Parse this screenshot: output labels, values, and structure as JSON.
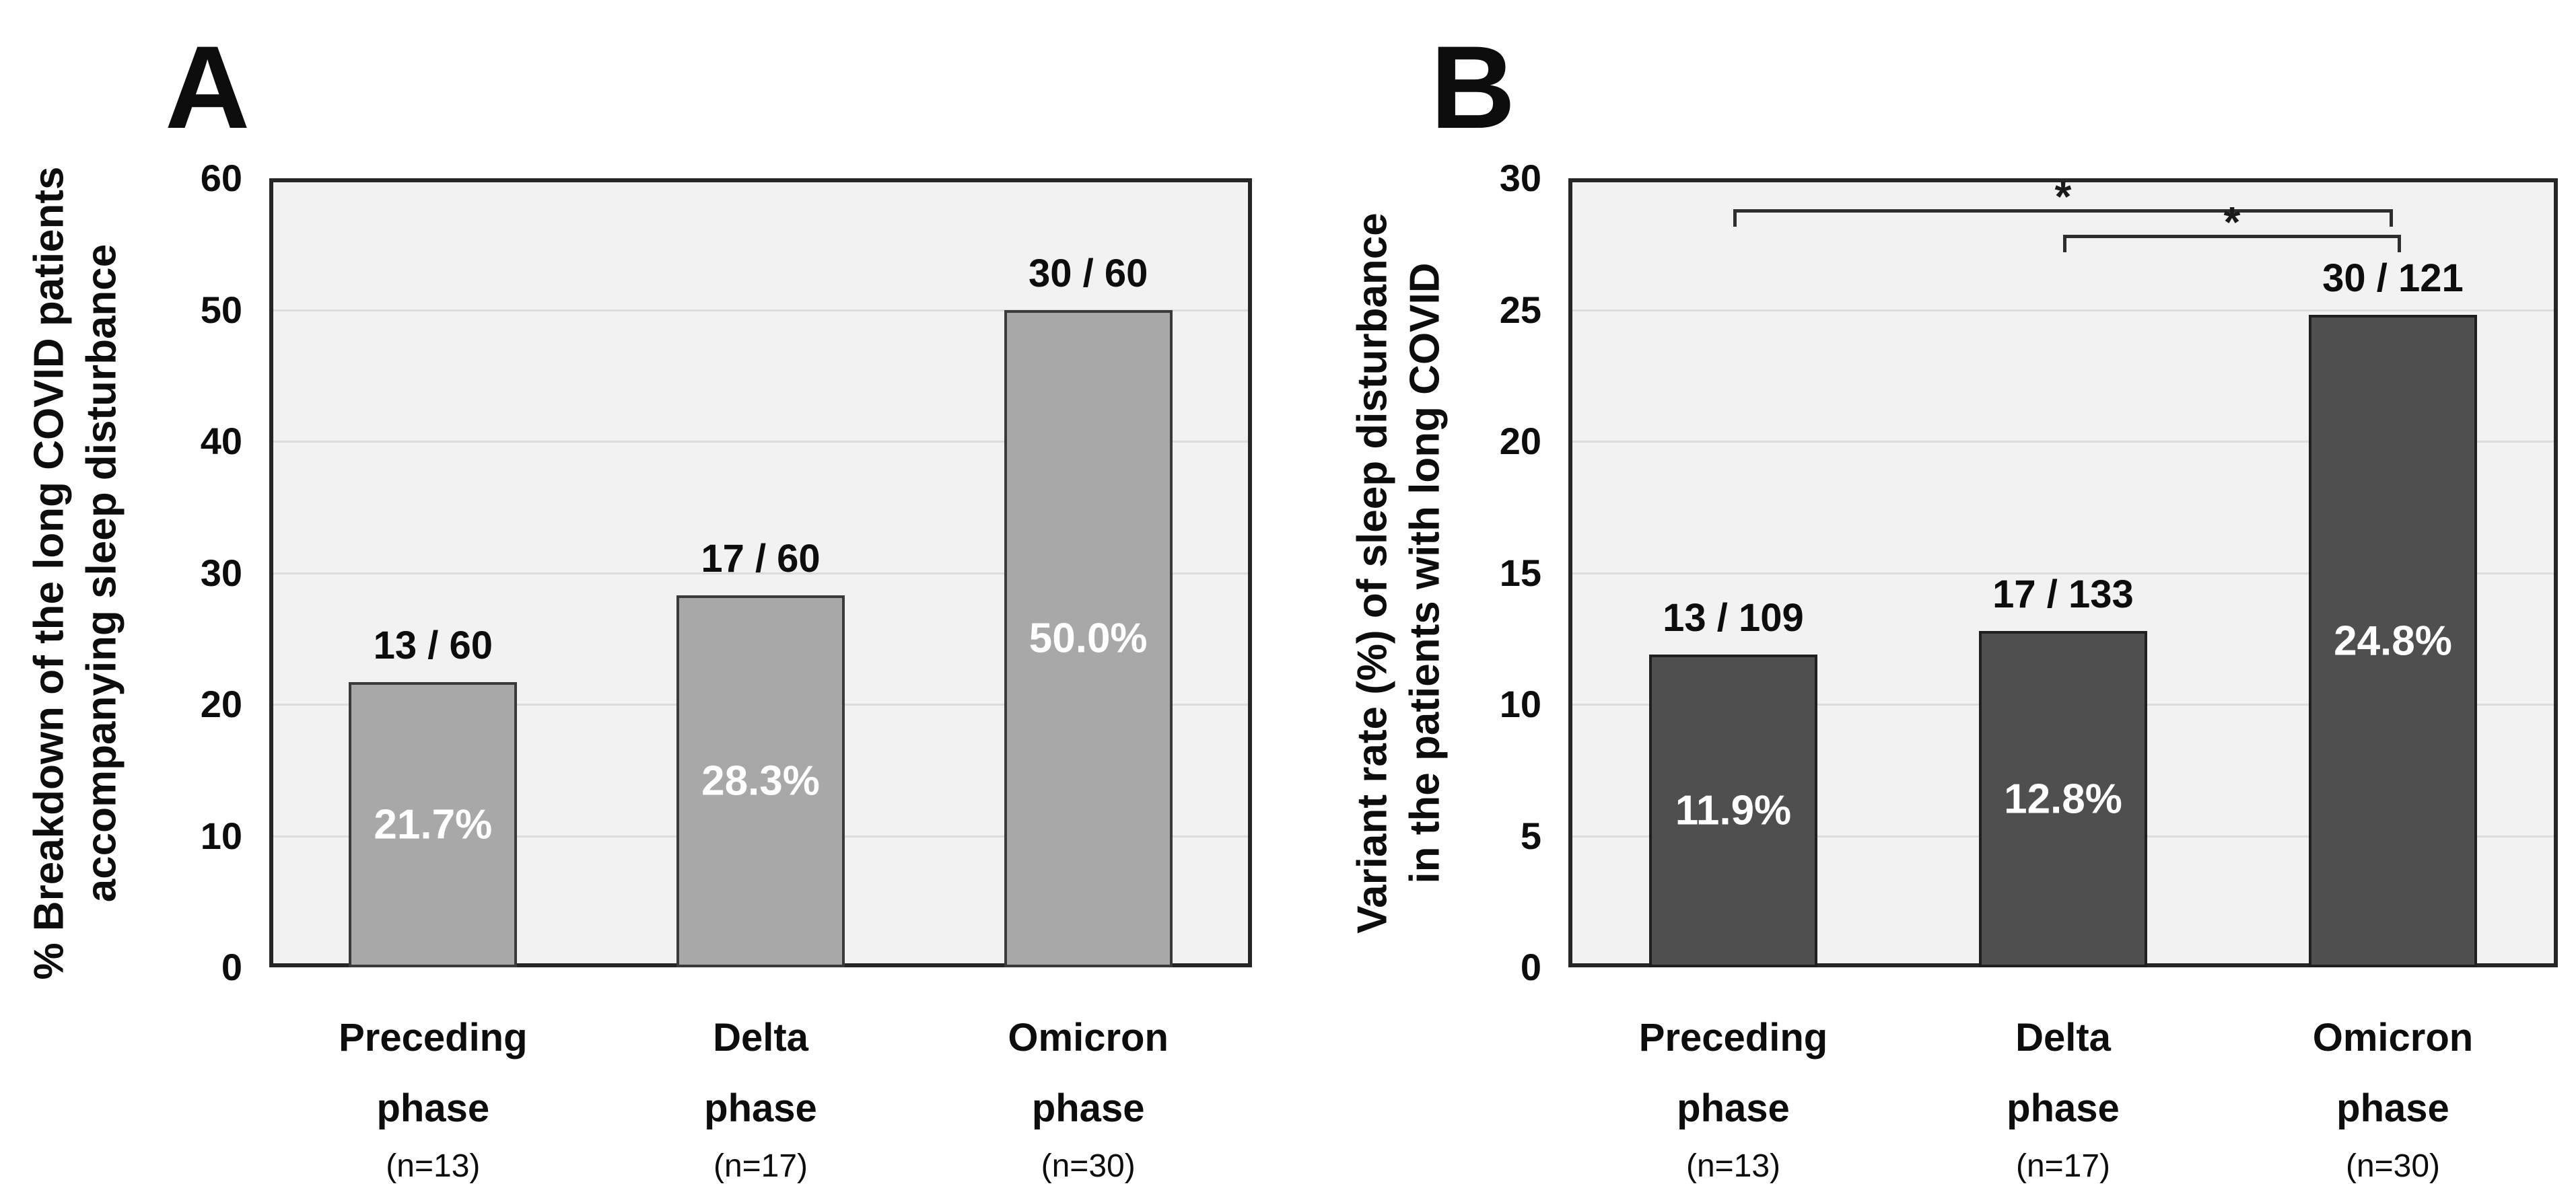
{
  "figure": {
    "background": "#ffffff",
    "text_color": "#111111"
  },
  "chart_data": [
    {
      "type": "bar",
      "panel_label": "A",
      "title": "",
      "xlabel": "",
      "ylabel": "% Breakdown of the long COVID patients accompanying sleep disturbance",
      "ylabel_lines": [
        "% Breakdown of the long COVID patients",
        "accompanying sleep disturbance"
      ],
      "ylim": [
        0,
        60
      ],
      "yticks": [
        0,
        10,
        20,
        30,
        40,
        50,
        60
      ],
      "grid": true,
      "legend": "none",
      "categories": [
        "Preceding phase",
        "Delta phase",
        "Omicron phase"
      ],
      "category_lines": [
        [
          "Preceding",
          "phase"
        ],
        [
          "Delta",
          "phase"
        ],
        [
          "Omicron",
          "phase"
        ]
      ],
      "n_labels": [
        "(n=13)",
        "(n=17)",
        "(n=30)"
      ],
      "values": [
        21.7,
        28.3,
        50.0
      ],
      "bar_top_labels": [
        "13 / 60",
        "17 / 60",
        "30 / 60"
      ],
      "bar_inner_labels": [
        "21.7%",
        "28.3%",
        "50.0%"
      ],
      "significance_brackets": [],
      "colors": {
        "bar_fill": "#a8a8a8",
        "bar_border": "#3a3a3a",
        "plot_bg": "#f2f2f2",
        "gridline": "#dcdcdc",
        "frame": "#262626",
        "inner_label": "#ffffff"
      }
    },
    {
      "type": "bar",
      "panel_label": "B",
      "title": "",
      "xlabel": "",
      "ylabel": "Variant rate (%) of sleep disturbance in the patients with long COVID",
      "ylabel_lines": [
        "Variant rate (%) of sleep disturbance",
        "in the patients with long COVID"
      ],
      "ylim": [
        0,
        30
      ],
      "yticks": [
        0,
        5,
        10,
        15,
        20,
        25,
        30
      ],
      "grid": true,
      "legend": "none",
      "categories": [
        "Preceding phase",
        "Delta phase",
        "Omicron phase"
      ],
      "category_lines": [
        [
          "Preceding",
          "phase"
        ],
        [
          "Delta",
          "phase"
        ],
        [
          "Omicron",
          "phase"
        ]
      ],
      "n_labels": [
        "(n=13)",
        "(n=17)",
        "(n=30)"
      ],
      "values": [
        11.9,
        12.8,
        24.8
      ],
      "bar_top_labels": [
        "13 / 109",
        "17 / 133",
        "30 / 121"
      ],
      "bar_inner_labels": [
        "11.9%",
        "12.8%",
        "24.8%"
      ],
      "significance_brackets": [
        {
          "from_index": 0,
          "to_index": 2,
          "label": "*"
        },
        {
          "from_index": 1,
          "to_index": 2,
          "label": "*"
        }
      ],
      "colors": {
        "bar_fill": "#4f4f4f",
        "bar_border": "#1f1f1f",
        "plot_bg": "#f2f2f2",
        "gridline": "#dcdcdc",
        "frame": "#262626",
        "inner_label": "#ffffff"
      }
    }
  ]
}
